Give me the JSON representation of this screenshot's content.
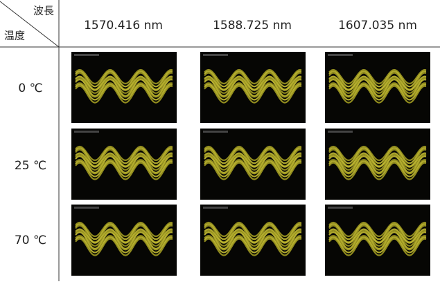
{
  "table": {
    "corner": {
      "column_label": "波長",
      "row_label": "温度"
    },
    "columns": [
      "1570.416 nm",
      "1588.725 nm",
      "1607.035 nm"
    ],
    "rows": [
      "0 ℃",
      "25 ℃",
      "70 ℃"
    ]
  }
}
